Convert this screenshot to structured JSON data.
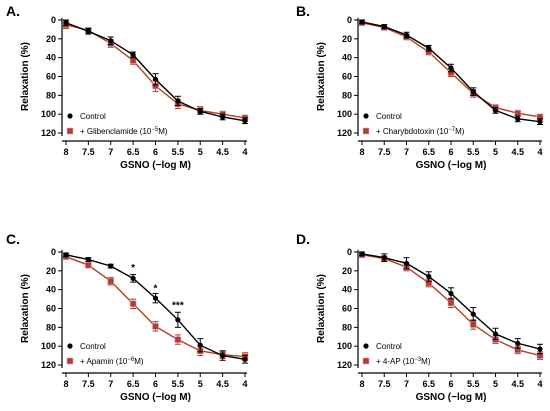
{
  "chart_data": [
    {
      "type": "line",
      "letter": "A.",
      "xlabel": "GSNO (−log M)",
      "ylabel": "Relaxation (%)",
      "x": [
        8,
        7.5,
        7,
        6.5,
        6,
        5.5,
        5,
        4.5,
        4
      ],
      "x_ticks": [
        "8",
        "7.5",
        "7",
        "6.5",
        "6",
        "5.5",
        "5",
        "4.5",
        "4"
      ],
      "y_ticks": [
        "0",
        "20",
        "40",
        "60",
        "80",
        "100",
        "120"
      ],
      "xlim": [
        8,
        4
      ],
      "ylim": [
        0,
        120
      ],
      "series": [
        {
          "name": "Control",
          "legend_suffix": "",
          "color": "#000000",
          "marker": "circle",
          "values": [
            3,
            12,
            22,
            37,
            63,
            86,
            97,
            103,
            107
          ],
          "err": [
            3,
            3,
            4,
            3,
            6,
            5,
            3,
            3,
            3
          ]
        },
        {
          "name": "+ Glibenclamide (10",
          "legend_suffix": "M)",
          "legend_sup": "−5",
          "color": "#b2401f",
          "marker": "square",
          "values": [
            5,
            11,
            25,
            43,
            70,
            89,
            96,
            100,
            104
          ],
          "err": [
            4,
            3,
            4,
            4,
            6,
            5,
            4,
            3,
            3
          ]
        }
      ],
      "annotations": []
    },
    {
      "type": "line",
      "letter": "B.",
      "xlabel": "GSNO (−log M)",
      "ylabel": "Relaxation (%)",
      "x": [
        8,
        7.5,
        7,
        6.5,
        6,
        5.5,
        5,
        4.5,
        4
      ],
      "x_ticks": [
        "8",
        "7.5",
        "7",
        "6.5",
        "6",
        "5.5",
        "5",
        "4.5",
        "4"
      ],
      "y_ticks": [
        "0",
        "20",
        "40",
        "60",
        "80",
        "100",
        "120"
      ],
      "xlim": [
        8,
        4
      ],
      "ylim": [
        0,
        120
      ],
      "series": [
        {
          "name": "Control",
          "legend_suffix": "",
          "color": "#000000",
          "marker": "circle",
          "values": [
            2,
            7,
            16,
            30,
            51,
            76,
            96,
            105,
            108
          ],
          "err": [
            2,
            2,
            3,
            3,
            4,
            4,
            3,
            3,
            3
          ]
        },
        {
          "name": "+ Charybdotoxin (10",
          "legend_suffix": "M)",
          "legend_sup": "−7",
          "color": "#b2401f",
          "marker": "square",
          "values": [
            3,
            8,
            18,
            34,
            56,
            78,
            93,
            99,
            103
          ],
          "err": [
            2,
            2,
            3,
            3,
            4,
            4,
            3,
            3,
            3
          ]
        }
      ],
      "annotations": []
    },
    {
      "type": "line",
      "letter": "C.",
      "xlabel": "GSNO (−log M)",
      "ylabel": "Relaxation (%)",
      "x": [
        8,
        7.5,
        7,
        6.5,
        6,
        5.5,
        5,
        4.5,
        4
      ],
      "x_ticks": [
        "8",
        "7.5",
        "7",
        "6.5",
        "6",
        "5.5",
        "5",
        "4.5",
        "4"
      ],
      "y_ticks": [
        "0",
        "20",
        "40",
        "60",
        "80",
        "100",
        "120"
      ],
      "xlim": [
        8,
        4
      ],
      "ylim": [
        0,
        120
      ],
      "series": [
        {
          "name": "Control",
          "legend_suffix": "",
          "color": "#000000",
          "marker": "circle",
          "values": [
            3,
            8,
            15,
            28,
            49,
            72,
            99,
            110,
            114
          ],
          "err": [
            2,
            2,
            2,
            4,
            5,
            8,
            7,
            5,
            4
          ]
        },
        {
          "name": "+ Apamin (10",
          "legend_suffix": "M)",
          "legend_sup": "−6",
          "color": "#b2401f",
          "marker": "square",
          "values": [
            5,
            14,
            31,
            55,
            79,
            93,
            105,
            109,
            111
          ],
          "err": [
            3,
            3,
            4,
            5,
            5,
            5,
            5,
            4,
            4
          ]
        }
      ],
      "annotations": [
        {
          "text": "*",
          "x": 6.5,
          "y": 20
        },
        {
          "text": "*",
          "x": 6,
          "y": 42
        },
        {
          "text": "***",
          "x": 5.5,
          "y": 60
        }
      ]
    },
    {
      "type": "line",
      "letter": "D.",
      "xlabel": "GSNO (−log M)",
      "ylabel": "Relaxation (%)",
      "x": [
        8,
        7.5,
        7,
        6.5,
        6,
        5.5,
        5,
        4.5,
        4
      ],
      "x_ticks": [
        "8",
        "7.5",
        "7",
        "6.5",
        "6",
        "5.5",
        "5",
        "4.5",
        "4"
      ],
      "y_ticks": [
        "0",
        "20",
        "40",
        "60",
        "80",
        "100",
        "120"
      ],
      "xlim": [
        8,
        4
      ],
      "ylim": [
        0,
        120
      ],
      "series": [
        {
          "name": "Control",
          "legend_suffix": "",
          "color": "#000000",
          "marker": "circle",
          "values": [
            2,
            6,
            12,
            26,
            44,
            66,
            87,
            97,
            103
          ],
          "err": [
            2,
            4,
            6,
            5,
            6,
            7,
            6,
            5,
            5
          ]
        },
        {
          "name": "+ 4-AP (10",
          "legend_suffix": "M)",
          "legend_sup": "−3",
          "color": "#b2401f",
          "marker": "square",
          "values": [
            3,
            7,
            16,
            33,
            54,
            77,
            93,
            104,
            110
          ],
          "err": [
            2,
            3,
            4,
            4,
            5,
            5,
            4,
            4,
            4
          ]
        }
      ],
      "annotations": []
    }
  ]
}
